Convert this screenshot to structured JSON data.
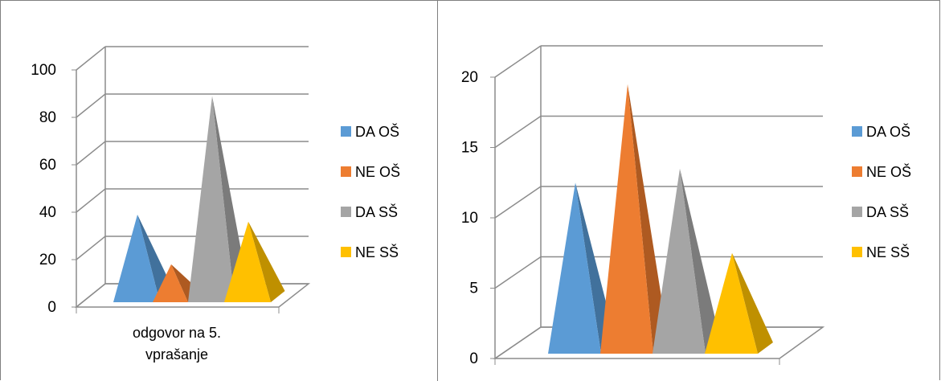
{
  "chart_data": [
    {
      "type": "bar",
      "subtype": "3d-pyramid",
      "title": "",
      "categories": [
        "odgovor na 5. vprašanje"
      ],
      "category_lines": [
        "odgovor na 5.",
        "vprašanje"
      ],
      "series": [
        {
          "name": " DA OŠ",
          "values": [
            39
          ]
        },
        {
          "name": "NE OŠ",
          "values": [
            18
          ]
        },
        {
          "name": "DA SŠ",
          "values": [
            89
          ]
        },
        {
          "name": "NE SŠ",
          "values": [
            36
          ]
        }
      ],
      "ylim": [
        0,
        100
      ],
      "yticks": [
        "0",
        "20",
        "40",
        "60",
        "80",
        "100"
      ],
      "grid": true,
      "legend": "right"
    },
    {
      "type": "bar",
      "subtype": "3d-pyramid",
      "title": "",
      "categories": [
        ""
      ],
      "series": [
        {
          "name": "DA OŠ",
          "values": [
            12.5
          ]
        },
        {
          "name": "NE OŠ",
          "values": [
            19.5
          ]
        },
        {
          "name": "DA SŠ",
          "values": [
            13.5
          ]
        },
        {
          "name": "NE SŠ",
          "values": [
            7.5
          ]
        }
      ],
      "ylim": [
        0,
        20
      ],
      "yticks": [
        "0",
        "5",
        "10",
        "15",
        "20"
      ],
      "grid": true,
      "legend": "right"
    }
  ],
  "colors": {
    "DA OŠ": "#5B9BD5",
    "NE OŠ": "#ED7D31",
    "DA SŠ": "#A5A5A5",
    "NE SŠ": "#FFC000"
  }
}
